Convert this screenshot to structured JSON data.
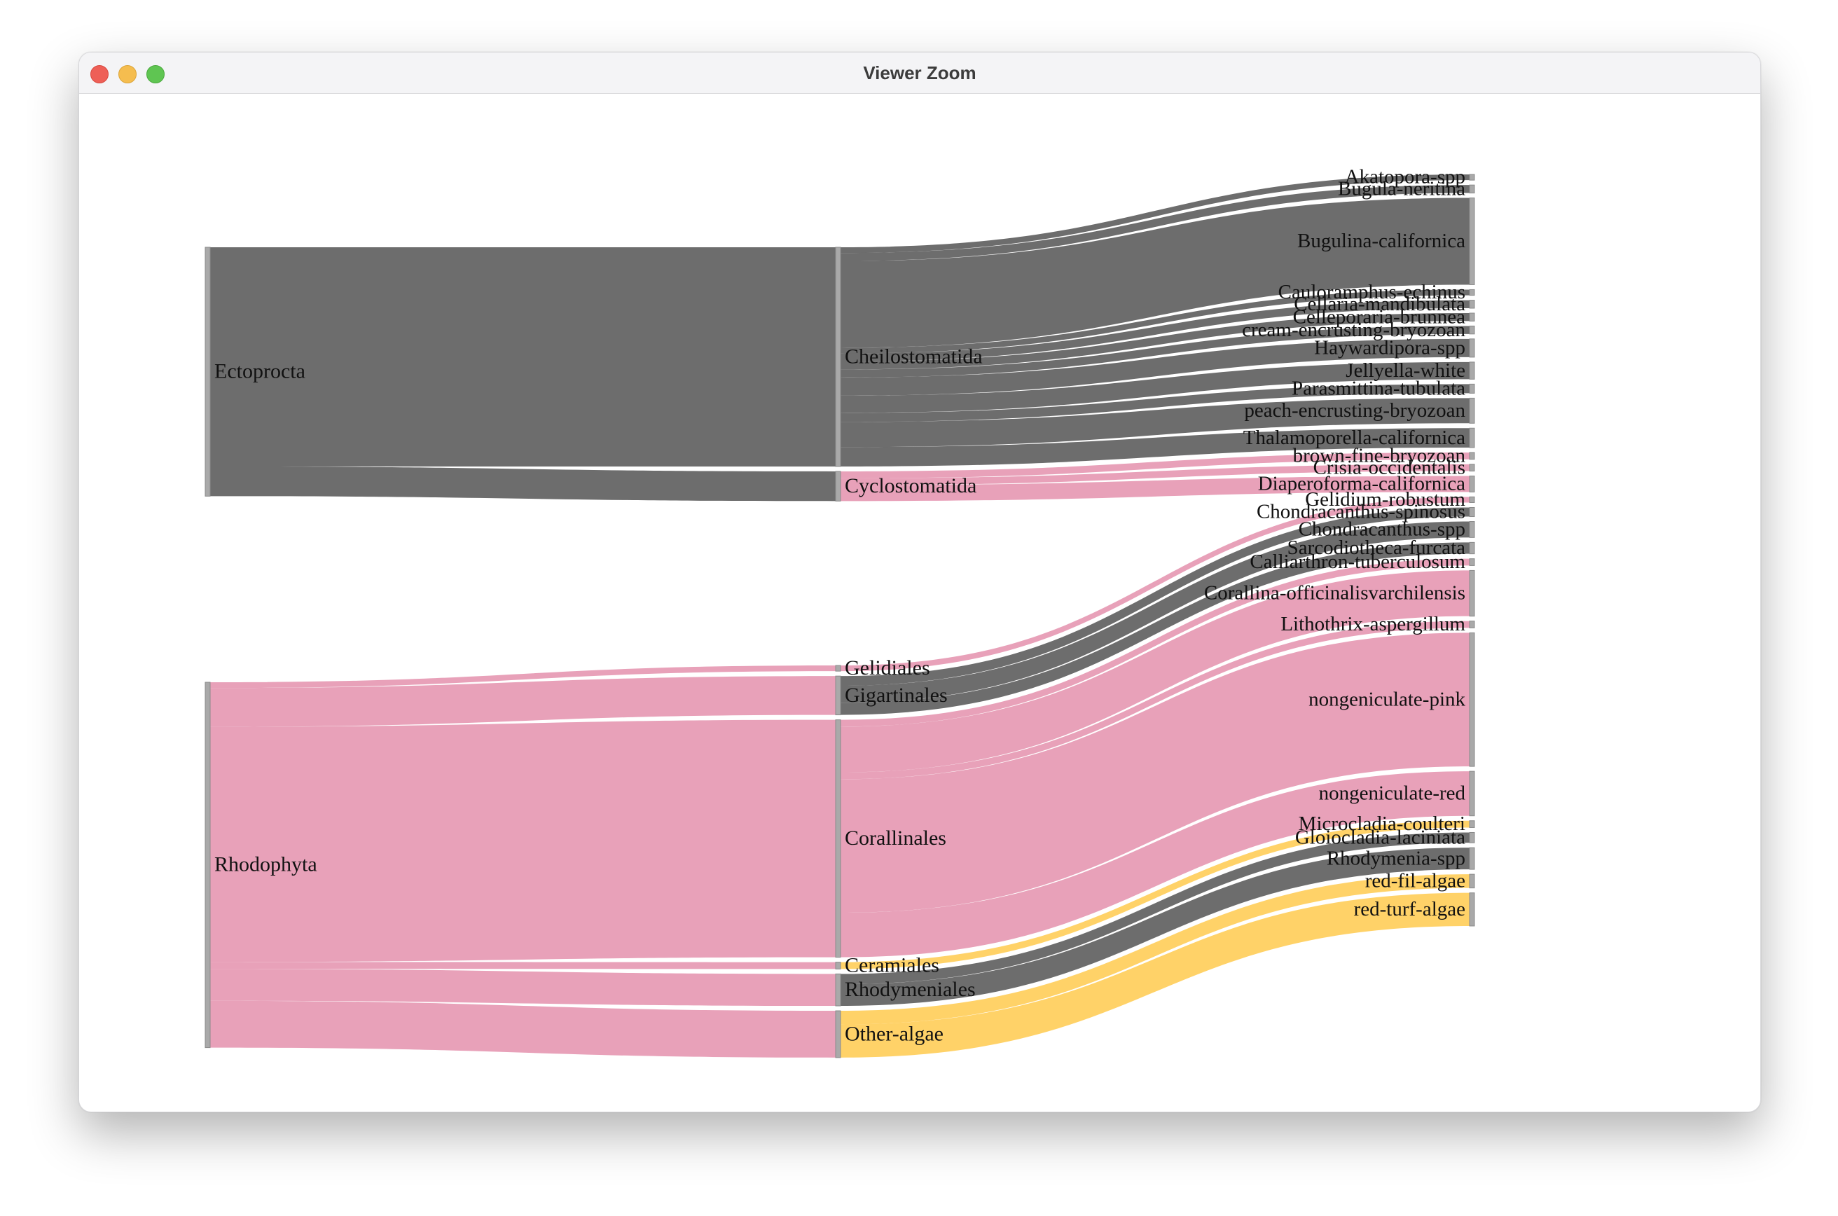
{
  "window": {
    "title": "Viewer Zoom"
  },
  "colors": {
    "dark": "#616161",
    "pink": "#e699b3",
    "yellow": "#ffd060",
    "node": "#a9a9a9"
  },
  "nodes": [
    {
      "id": "ectoprocta",
      "label": "Ectoprocta",
      "column": 0
    },
    {
      "id": "rhodophyta",
      "label": "Rhodophyta",
      "column": 0
    },
    {
      "id": "cheilostomatida",
      "label": "Cheilostomatida",
      "column": 1
    },
    {
      "id": "cyclostomatida",
      "label": "Cyclostomatida",
      "column": 1
    },
    {
      "id": "gelidiales",
      "label": "Gelidiales",
      "column": 1
    },
    {
      "id": "gigartinales",
      "label": "Gigartinales",
      "column": 1
    },
    {
      "id": "corallinales",
      "label": "Corallinales",
      "column": 1
    },
    {
      "id": "ceramiales",
      "label": "Ceramiales",
      "column": 1
    },
    {
      "id": "rhodymeniales",
      "label": "Rhodymeniales",
      "column": 1
    },
    {
      "id": "other-algae",
      "label": "Other-algae",
      "column": 1
    },
    {
      "id": "akatopora-spp",
      "label": "Akatopora-spp",
      "column": 2
    },
    {
      "id": "bugula-neritina",
      "label": "Bugula-neritina",
      "column": 2
    },
    {
      "id": "bugulina-californica",
      "label": "Bugulina-californica",
      "column": 2
    },
    {
      "id": "cauloramphus-echinus",
      "label": "Cauloramphus-echinus",
      "column": 2
    },
    {
      "id": "cellaria-mandibulata",
      "label": "Cellaria-mandibulata",
      "column": 2
    },
    {
      "id": "celleporaria-brunnea",
      "label": "Celleporaria-brunnea",
      "column": 2
    },
    {
      "id": "cream-encrusting-bryozoan",
      "label": "cream-encrusting-bryozoan",
      "column": 2
    },
    {
      "id": "haywardipora-spp",
      "label": "Haywardipora-spp",
      "column": 2
    },
    {
      "id": "jellyella-white",
      "label": "Jellyella-white",
      "column": 2
    },
    {
      "id": "parasmittina-tubulata",
      "label": "Parasmittina-tubulata",
      "column": 2
    },
    {
      "id": "peach-encrusting-bryozoan",
      "label": "peach-encrusting-bryozoan",
      "column": 2
    },
    {
      "id": "thalamoporella-californica",
      "label": "Thalamoporella-californica",
      "column": 2
    },
    {
      "id": "brown-fine-bryozoan",
      "label": "brown-fine-bryozoan",
      "column": 2
    },
    {
      "id": "crisia-occidentalis",
      "label": "Crisia-occidentalis",
      "column": 2
    },
    {
      "id": "diaperoforma-californica",
      "label": "Diaperoforma-californica",
      "column": 2
    },
    {
      "id": "gelidium-robustum",
      "label": "Gelidium-robustum",
      "column": 2
    },
    {
      "id": "chondracanthus-spinosus",
      "label": "Chondracanthus-spinosus",
      "column": 2
    },
    {
      "id": "chondracanthus-spp",
      "label": "Chondracanthus-spp",
      "column": 2
    },
    {
      "id": "sarcodiotheca-furcata",
      "label": "Sarcodiotheca-furcata",
      "column": 2
    },
    {
      "id": "calliarthron-tuberculosum",
      "label": "Calliarthron-tuberculosum",
      "column": 2
    },
    {
      "id": "corallina-officinalisvarchilensis",
      "label": "Corallina-officinalisvarchilensis",
      "column": 2
    },
    {
      "id": "lithothrix-aspergillum",
      "label": "Lithothrix-aspergillum",
      "column": 2
    },
    {
      "id": "nongeniculate-pink",
      "label": "nongeniculate-pink",
      "column": 2
    },
    {
      "id": "nongeniculate-red",
      "label": "nongeniculate-red",
      "column": 2
    },
    {
      "id": "microcladia-coulteri",
      "label": "Microcladia-coulteri",
      "column": 2
    },
    {
      "id": "gloiocladia-laciniata",
      "label": "Gloiocladia-laciniata",
      "column": 2
    },
    {
      "id": "rhodymenia-spp",
      "label": "Rhodymenia-spp",
      "column": 2
    },
    {
      "id": "red-fil-algae",
      "label": "red-fil-algae",
      "column": 2
    },
    {
      "id": "red-turf-algae",
      "label": "red-turf-algae",
      "column": 2
    }
  ],
  "links": [
    {
      "source": "ectoprocta",
      "target": "cheilostomatida",
      "value": 19.2,
      "color": "dark"
    },
    {
      "source": "ectoprocta",
      "target": "cyclostomatida",
      "value": 2.6,
      "color": "dark"
    },
    {
      "source": "rhodophyta",
      "target": "gelidiales",
      "value": 0.5,
      "color": "pink"
    },
    {
      "source": "rhodophyta",
      "target": "gigartinales",
      "value": 3.4,
      "color": "pink"
    },
    {
      "source": "rhodophyta",
      "target": "corallinales",
      "value": 20.6,
      "color": "pink"
    },
    {
      "source": "rhodophyta",
      "target": "ceramiales",
      "value": 0.6,
      "color": "pink"
    },
    {
      "source": "rhodophyta",
      "target": "rhodymeniales",
      "value": 2.8,
      "color": "pink"
    },
    {
      "source": "rhodophyta",
      "target": "other-algae",
      "value": 4.1,
      "color": "pink"
    },
    {
      "source": "cheilostomatida",
      "target": "akatopora-spp",
      "value": 0.5,
      "color": "dark"
    },
    {
      "source": "cheilostomatida",
      "target": "bugula-neritina",
      "value": 0.7,
      "color": "dark"
    },
    {
      "source": "cheilostomatida",
      "target": "bugulina-californica",
      "value": 7.6,
      "color": "dark"
    },
    {
      "source": "cheilostomatida",
      "target": "cauloramphus-echinus",
      "value": 0.5,
      "color": "dark"
    },
    {
      "source": "cheilostomatida",
      "target": "cellaria-mandibulata",
      "value": 0.7,
      "color": "dark"
    },
    {
      "source": "cheilostomatida",
      "target": "celleporaria-brunnea",
      "value": 0.7,
      "color": "dark"
    },
    {
      "source": "cheilostomatida",
      "target": "cream-encrusting-bryozoan",
      "value": 0.7,
      "color": "dark"
    },
    {
      "source": "cheilostomatida",
      "target": "haywardipora-spp",
      "value": 1.6,
      "color": "dark"
    },
    {
      "source": "cheilostomatida",
      "target": "jellyella-white",
      "value": 1.5,
      "color": "dark"
    },
    {
      "source": "cheilostomatida",
      "target": "parasmittina-tubulata",
      "value": 0.8,
      "color": "dark"
    },
    {
      "source": "cheilostomatida",
      "target": "peach-encrusting-bryozoan",
      "value": 2.2,
      "color": "dark"
    },
    {
      "source": "cheilostomatida",
      "target": "thalamoporella-californica",
      "value": 1.7,
      "color": "dark"
    },
    {
      "source": "cyclostomatida",
      "target": "brown-fine-bryozoan",
      "value": 0.6,
      "color": "pink"
    },
    {
      "source": "cyclostomatida",
      "target": "crisia-occidentalis",
      "value": 0.6,
      "color": "pink"
    },
    {
      "source": "cyclostomatida",
      "target": "diaperoforma-californica",
      "value": 1.4,
      "color": "pink"
    },
    {
      "source": "gelidiales",
      "target": "gelidium-robustum",
      "value": 0.5,
      "color": "pink"
    },
    {
      "source": "gigartinales",
      "target": "chondracanthus-spinosus",
      "value": 0.8,
      "color": "dark"
    },
    {
      "source": "gigartinales",
      "target": "chondracanthus-spp",
      "value": 1.4,
      "color": "dark"
    },
    {
      "source": "gigartinales",
      "target": "sarcodiotheca-furcata",
      "value": 1.0,
      "color": "dark"
    },
    {
      "source": "corallinales",
      "target": "calliarthron-tuberculosum",
      "value": 0.6,
      "color": "pink"
    },
    {
      "source": "corallinales",
      "target": "corallina-officinalisvarchilensis",
      "value": 4.0,
      "color": "pink"
    },
    {
      "source": "corallinales",
      "target": "lithothrix-aspergillum",
      "value": 0.6,
      "color": "pink"
    },
    {
      "source": "corallinales",
      "target": "nongeniculate-pink",
      "value": 11.7,
      "color": "pink"
    },
    {
      "source": "corallinales",
      "target": "nongeniculate-red",
      "value": 3.9,
      "color": "pink"
    },
    {
      "source": "ceramiales",
      "target": "microcladia-coulteri",
      "value": 0.6,
      "color": "yellow"
    },
    {
      "source": "rhodymeniales",
      "target": "gloiocladia-laciniata",
      "value": 0.9,
      "color": "dark"
    },
    {
      "source": "rhodymeniales",
      "target": "rhodymenia-spp",
      "value": 1.9,
      "color": "dark"
    },
    {
      "source": "other-algae",
      "target": "red-fil-algae",
      "value": 1.2,
      "color": "yellow"
    },
    {
      "source": "other-algae",
      "target": "red-turf-algae",
      "value": 2.9,
      "color": "yellow"
    }
  ]
}
